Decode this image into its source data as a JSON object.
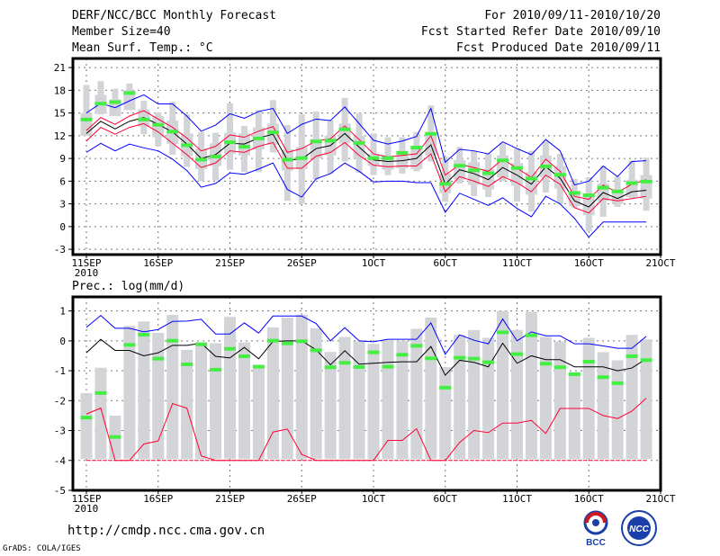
{
  "header": {
    "title": "DERF/NCC/BCC Monthly Forecast",
    "member_size": "Member Size=40",
    "variable": "Mean Surf. Temp.: °C",
    "period": "For 2010/09/11-2010/10/20",
    "refer_date": "Fcst Started Refer Date 2010/09/10",
    "produced_date": "Fcst Produced Date 2010/09/11"
  },
  "footer": {
    "url": "http://cmdp.ncc.cma.gov.cn",
    "credit": "GrADS: COLA/IGES",
    "logo_bcc": "BCC",
    "logo_ncc": "NCC"
  },
  "colors": {
    "blue": "#0000ff",
    "red": "#ff0033",
    "black": "#000000",
    "green": "#44ee44",
    "gray": "#d3d4d8"
  },
  "chart_data": [
    {
      "type": "line",
      "title": "Mean Surf. Temp.: °C",
      "x_labels": [
        "11SEP",
        "16SEP",
        "21SEP",
        "26SEP",
        "1OCT",
        "6OCT",
        "11OCT",
        "16OCT",
        "21OCT"
      ],
      "x_year": "2010",
      "days": 40,
      "ylim": [
        -3.7,
        22.2
      ],
      "y_ticks": [
        -3,
        0,
        3,
        6,
        9,
        12,
        15,
        18,
        21
      ],
      "grid": true,
      "series": [
        {
          "name": "ensemble mean",
          "color": "black",
          "values": [
            12.3,
            13.9,
            12.9,
            13.9,
            14.4,
            13.5,
            12.5,
            10.9,
            9.0,
            9.5,
            11.0,
            10.9,
            11.7,
            12.2,
            8.8,
            8.9,
            10.3,
            10.7,
            12.3,
            10.5,
            8.8,
            8.6,
            8.7,
            9.0,
            10.8,
            5.6,
            7.5,
            7.0,
            6.2,
            7.8,
            6.8,
            5.6,
            7.9,
            6.4,
            3.4,
            2.6,
            4.5,
            3.7,
            4.6,
            4.8
          ]
        },
        {
          "name": "upper red",
          "color": "red",
          "values": [
            12.7,
            14.4,
            13.5,
            14.6,
            15.3,
            14.2,
            13.1,
            11.7,
            10.0,
            10.6,
            12.1,
            11.8,
            12.6,
            13.2,
            9.8,
            10.3,
            11.3,
            11.6,
            13.3,
            11.5,
            9.6,
            9.2,
            9.4,
            9.6,
            12.0,
            6.8,
            8.2,
            7.8,
            7.3,
            8.9,
            7.7,
            6.5,
            8.9,
            7.3,
            4.0,
            3.6,
            5.5,
            4.5,
            5.6,
            6.2
          ]
        },
        {
          "name": "lower red",
          "color": "red",
          "values": [
            11.3,
            13.1,
            12.2,
            13.1,
            13.6,
            12.5,
            11.0,
            9.5,
            7.8,
            8.4,
            10.0,
            9.8,
            10.6,
            11.1,
            7.7,
            7.7,
            9.3,
            9.8,
            11.1,
            9.4,
            8.1,
            7.9,
            8.0,
            8.0,
            9.6,
            4.6,
            6.6,
            6.0,
            5.3,
            6.6,
            5.8,
            4.6,
            6.8,
            5.6,
            2.5,
            1.8,
            3.7,
            3.4,
            3.7,
            4.0
          ]
        },
        {
          "name": "upper blue",
          "color": "blue",
          "values": [
            15.0,
            16.3,
            15.7,
            16.6,
            17.4,
            16.2,
            16.2,
            14.6,
            12.6,
            13.4,
            14.9,
            14.3,
            15.2,
            15.6,
            12.3,
            13.5,
            14.2,
            14.0,
            15.8,
            13.6,
            11.4,
            10.9,
            11.3,
            11.9,
            15.6,
            8.5,
            10.2,
            10.0,
            9.6,
            11.2,
            10.3,
            9.5,
            11.5,
            10.0,
            5.5,
            6.0,
            8.0,
            6.6,
            8.6,
            8.7
          ]
        },
        {
          "name": "lower blue",
          "color": "blue",
          "values": [
            9.8,
            11.0,
            10.0,
            10.9,
            10.4,
            10.0,
            8.9,
            7.4,
            5.2,
            5.7,
            7.1,
            6.9,
            7.6,
            8.4,
            4.9,
            3.9,
            6.3,
            7.0,
            8.4,
            7.3,
            5.9,
            6.0,
            6.0,
            5.8,
            5.8,
            1.9,
            4.4,
            3.6,
            2.8,
            3.8,
            2.4,
            1.3,
            4.0,
            3.0,
            1.1,
            -1.4,
            0.6,
            0.6,
            0.6,
            0.6
          ]
        }
      ],
      "markers": {
        "name": "green",
        "values": [
          14.2,
          16.3,
          16.5,
          17.7,
          14.2,
          13.5,
          12.6,
          10.8,
          8.9,
          9.3,
          11.2,
          10.6,
          11.7,
          12.5,
          8.9,
          9.1,
          11.3,
          11.4,
          12.9,
          11.1,
          9.1,
          9.1,
          9.8,
          10.5,
          12.3,
          5.7,
          8.1,
          7.5,
          7.1,
          8.8,
          7.8,
          6.4,
          8.0,
          6.9,
          4.5,
          4.2,
          5.2,
          4.7,
          5.8,
          6.0
        ]
      },
      "range_min": [
        12.0,
        14.8,
        14.6,
        15.4,
        12.2,
        10.6,
        9.5,
        7.9,
        6.0,
        6.1,
        7.5,
        7.2,
        7.2,
        9.8,
        3.4,
        3.0,
        6.2,
        7.0,
        8.6,
        7.1,
        6.8,
        6.8,
        7.0,
        7.3,
        8.6,
        3.3,
        5.7,
        4.0,
        3.9,
        6.0,
        3.3,
        2.0,
        4.5,
        3.0,
        2.5,
        -0.6,
        1.3,
        2.6,
        3.8,
        2.1
      ],
      "range_max": [
        18.7,
        19.2,
        18.2,
        18.9,
        16.6,
        15.1,
        16.5,
        14.8,
        12.5,
        12.4,
        16.3,
        13.3,
        15.4,
        16.7,
        13.4,
        14.8,
        15.2,
        14.0,
        17.0,
        15.0,
        12.3,
        11.8,
        11.8,
        12.5,
        16.0,
        9.2,
        10.5,
        10.0,
        9.6,
        11.0,
        10.3,
        10.0,
        11.3,
        9.6,
        6.3,
        6.5,
        8.0,
        6.6,
        8.7,
        9.1
      ],
      "box_lo": [
        12.0,
        14.9,
        14.6,
        15.4,
        13.2,
        11.8,
        10.9,
        9.3,
        7.6,
        8.0,
        9.6,
        9.4,
        10.2,
        10.8,
        7.4,
        7.6,
        9.0,
        9.4,
        11.0,
        9.0,
        8.0,
        7.5,
        7.7,
        7.6,
        9.4,
        4.4,
        6.2,
        5.5,
        4.9,
        6.5,
        5.4,
        4.2,
        6.5,
        5.0,
        2.7,
        1.5,
        3.4,
        3.0,
        3.9,
        3.7
      ],
      "box_hi": [
        15.0,
        17.4,
        16.8,
        18.0,
        15.5,
        14.6,
        14.0,
        12.3,
        10.3,
        11.0,
        12.4,
        12.3,
        13.1,
        13.6,
        10.2,
        10.5,
        11.6,
        12.0,
        13.6,
        12.0,
        9.6,
        9.4,
        10.0,
        10.4,
        12.5,
        7.0,
        8.8,
        8.5,
        7.6,
        9.4,
        8.4,
        7.2,
        9.4,
        8.0,
        4.7,
        4.2,
        5.7,
        5.0,
        6.2,
        6.8
      ]
    },
    {
      "type": "line",
      "title": "Prec.: log(mm/d)",
      "x_labels": [
        "11SEP",
        "16SEP",
        "21SEP",
        "26SEP",
        "1OCT",
        "6OCT",
        "11OCT",
        "16OCT",
        "21OCT"
      ],
      "x_year": "2010",
      "days": 40,
      "ylim": [
        -5,
        1.47
      ],
      "y_ticks": [
        -5,
        -4,
        -3,
        -2,
        -1,
        0,
        1
      ],
      "grid": true,
      "baseline": -4,
      "series": [
        {
          "name": "ensemble mean",
          "color": "black",
          "values": [
            -0.4,
            0.05,
            -0.32,
            -0.32,
            -0.5,
            -0.4,
            -0.15,
            -0.15,
            -0.08,
            -0.52,
            -0.57,
            -0.22,
            -0.6,
            -0.02,
            0.0,
            0.0,
            -0.3,
            -0.8,
            -0.33,
            -0.78,
            -0.75,
            -0.72,
            -0.7,
            -0.7,
            -0.19,
            -1.15,
            -0.65,
            -0.72,
            -0.87,
            -0.08,
            -0.75,
            -0.5,
            -0.63,
            -0.63,
            -0.87,
            -0.87,
            -0.87,
            -1.0,
            -0.91,
            -0.6
          ]
        },
        {
          "name": "upper blue",
          "color": "blue",
          "values": [
            0.45,
            0.85,
            0.42,
            0.42,
            0.3,
            0.38,
            0.65,
            0.66,
            0.72,
            0.23,
            0.23,
            0.6,
            0.26,
            0.83,
            0.83,
            0.83,
            0.58,
            0.0,
            0.44,
            0.0,
            -0.03,
            0.05,
            0.05,
            0.05,
            0.6,
            -0.45,
            0.2,
            0.02,
            -0.1,
            0.73,
            0.0,
            0.3,
            0.17,
            0.17,
            -0.1,
            -0.1,
            -0.17,
            -0.25,
            -0.25,
            0.15
          ]
        },
        {
          "name": "lower red",
          "color": "red",
          "values": [
            -2.45,
            -2.25,
            -4,
            -4,
            -3.45,
            -3.35,
            -2.1,
            -2.25,
            -3.85,
            -4,
            -4,
            -4,
            -4,
            -3.05,
            -2.95,
            -3.8,
            -4,
            -4,
            -4,
            -4,
            -4,
            -3.33,
            -3.33,
            -2.94,
            -4,
            -4,
            -3.4,
            -3.0,
            -3.07,
            -2.75,
            -2.75,
            -2.66,
            -3.1,
            -2.26,
            -2.26,
            -2.26,
            -2.5,
            -2.6,
            -2.35,
            -1.92
          ]
        }
      ],
      "markers": {
        "name": "green",
        "values": [
          -2.55,
          -1.73,
          -3.2,
          -0.12,
          0.22,
          -0.58,
          0.02,
          -0.77,
          -0.1,
          -0.95,
          -0.25,
          -0.5,
          -0.85,
          0.02,
          -0.07,
          0.0,
          -0.3,
          -0.87,
          -0.72,
          -0.86,
          -0.37,
          -0.85,
          -0.45,
          -0.15,
          -0.57,
          -1.55,
          -0.55,
          -0.58,
          -0.7,
          0.3,
          -0.43,
          0.2,
          -0.75,
          -0.87,
          -1.1,
          -0.68,
          -1.2,
          -1.4,
          -0.5,
          -0.63
        ]
      },
      "range_max": [
        -1.75,
        -0.9,
        -2.5,
        0.5,
        0.65,
        0.27,
        0.87,
        -0.3,
        -0.05,
        -0.08,
        0.8,
        -0.05,
        -0.8,
        0.45,
        0.78,
        0.88,
        0.42,
        -0.37,
        0.13,
        -0.02,
        -0.1,
        0.02,
        0.0,
        0.4,
        0.78,
        -0.88,
        0.2,
        0.36,
        0.1,
        1.0,
        0.36,
        0.97,
        0.13,
        -0.02,
        -1.1,
        0.1,
        -0.38,
        -0.65,
        0.2,
        0.05
      ]
    }
  ]
}
